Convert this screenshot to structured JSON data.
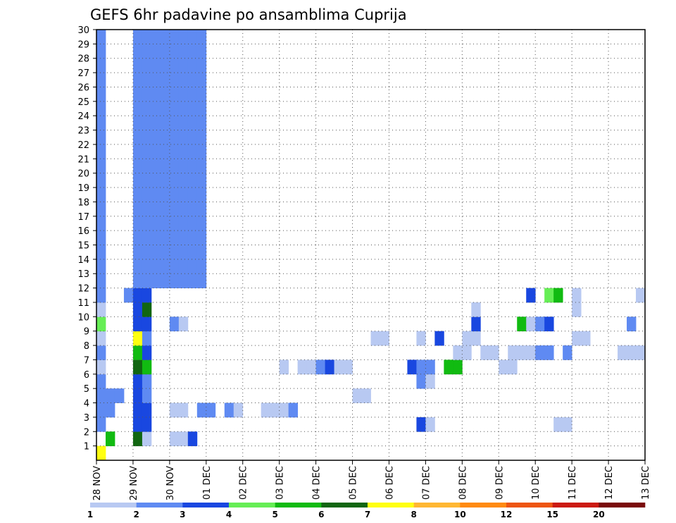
{
  "chart_data": {
    "type": "heatmap",
    "title": "GEFS 6hr padavine po ansamblima Cuprija",
    "xlabel": "",
    "ylabel": "",
    "x_ticks": [
      "28 NOV",
      "29 NOV",
      "30 NOV",
      "01 DEC",
      "02 DEC",
      "03 DEC",
      "04 DEC",
      "05 DEC",
      "06 DEC",
      "07 DEC",
      "08 DEC",
      "09 DEC",
      "10 DEC",
      "11 DEC",
      "12 DEC",
      "13 DEC"
    ],
    "y_ticks": [
      1,
      2,
      3,
      4,
      5,
      6,
      7,
      8,
      9,
      10,
      11,
      12,
      13,
      14,
      15,
      16,
      17,
      18,
      19,
      20,
      21,
      22,
      23,
      24,
      25,
      26,
      27,
      28,
      29,
      30
    ],
    "x_unit": "6h step (4 per day), 0 = 28 NOV 00z",
    "xlim": [
      0,
      60
    ],
    "ylim": [
      0,
      30
    ],
    "cell_format": "[x_step, ensemble_member, color_class 1..12]",
    "colorbar": {
      "ticks": [
        "1",
        "2",
        "3",
        "4",
        "5",
        "6",
        "7",
        "8",
        "10",
        "12",
        "15",
        "20"
      ],
      "colors": [
        "#b8c9f2",
        "#5f8af2",
        "#1947e0",
        "#66ee55",
        "#11bb11",
        "#116611",
        "#ffff11",
        "#ffb733",
        "#ff8a11",
        "#ee5511",
        "#cc1a11",
        "#7a0a0a"
      ]
    },
    "cells": [
      [
        0,
        0,
        7
      ],
      [
        1,
        1,
        5
      ],
      [
        4,
        1,
        6
      ],
      [
        5,
        1,
        1
      ],
      [
        8,
        1,
        1
      ],
      [
        9,
        1,
        1
      ],
      [
        10,
        1,
        3
      ],
      [
        0,
        2,
        2
      ],
      [
        4,
        2,
        3
      ],
      [
        5,
        2,
        3
      ],
      [
        35,
        2,
        3
      ],
      [
        36,
        2,
        1
      ],
      [
        50,
        2,
        1
      ],
      [
        51,
        2,
        1
      ],
      [
        0,
        3,
        2
      ],
      [
        1,
        3,
        2
      ],
      [
        4,
        3,
        3
      ],
      [
        5,
        3,
        3
      ],
      [
        8,
        3,
        1
      ],
      [
        9,
        3,
        1
      ],
      [
        11,
        3,
        2
      ],
      [
        12,
        3,
        2
      ],
      [
        14,
        3,
        2
      ],
      [
        15,
        3,
        1
      ],
      [
        18,
        3,
        1
      ],
      [
        19,
        3,
        1
      ],
      [
        20,
        3,
        1
      ],
      [
        21,
        3,
        2
      ],
      [
        0,
        4,
        2
      ],
      [
        1,
        4,
        2
      ],
      [
        2,
        4,
        2
      ],
      [
        4,
        4,
        3
      ],
      [
        5,
        4,
        2
      ],
      [
        28,
        4,
        1
      ],
      [
        29,
        4,
        1
      ],
      [
        0,
        5,
        2
      ],
      [
        4,
        5,
        3
      ],
      [
        5,
        5,
        2
      ],
      [
        35,
        5,
        2
      ],
      [
        36,
        5,
        1
      ],
      [
        0,
        6,
        1
      ],
      [
        4,
        6,
        6
      ],
      [
        5,
        6,
        5
      ],
      [
        20,
        6,
        1
      ],
      [
        22,
        6,
        1
      ],
      [
        23,
        6,
        1
      ],
      [
        24,
        6,
        2
      ],
      [
        25,
        6,
        3
      ],
      [
        26,
        6,
        1
      ],
      [
        27,
        6,
        1
      ],
      [
        34,
        6,
        3
      ],
      [
        35,
        6,
        2
      ],
      [
        36,
        6,
        2
      ],
      [
        38,
        6,
        5
      ],
      [
        39,
        6,
        5
      ],
      [
        44,
        6,
        1
      ],
      [
        45,
        6,
        1
      ],
      [
        0,
        7,
        2
      ],
      [
        4,
        7,
        5
      ],
      [
        5,
        7,
        3
      ],
      [
        39,
        7,
        1
      ],
      [
        40,
        7,
        1
      ],
      [
        42,
        7,
        1
      ],
      [
        43,
        7,
        1
      ],
      [
        45,
        7,
        1
      ],
      [
        46,
        7,
        1
      ],
      [
        47,
        7,
        1
      ],
      [
        48,
        7,
        2
      ],
      [
        49,
        7,
        2
      ],
      [
        51,
        7,
        2
      ],
      [
        57,
        7,
        1
      ],
      [
        58,
        7,
        1
      ],
      [
        59,
        7,
        1
      ],
      [
        0,
        8,
        1
      ],
      [
        4,
        8,
        7
      ],
      [
        5,
        8,
        2
      ],
      [
        30,
        8,
        1
      ],
      [
        31,
        8,
        1
      ],
      [
        35,
        8,
        1
      ],
      [
        37,
        8,
        3
      ],
      [
        40,
        8,
        1
      ],
      [
        41,
        8,
        1
      ],
      [
        52,
        8,
        1
      ],
      [
        53,
        8,
        1
      ],
      [
        0,
        9,
        4
      ],
      [
        4,
        9,
        3
      ],
      [
        5,
        9,
        3
      ],
      [
        8,
        9,
        2
      ],
      [
        9,
        9,
        1
      ],
      [
        41,
        9,
        3
      ],
      [
        46,
        9,
        5
      ],
      [
        47,
        9,
        1
      ],
      [
        48,
        9,
        2
      ],
      [
        49,
        9,
        3
      ],
      [
        58,
        9,
        2
      ],
      [
        0,
        10,
        1
      ],
      [
        4,
        10,
        3
      ],
      [
        5,
        10,
        6
      ],
      [
        41,
        10,
        1
      ],
      [
        52,
        10,
        1
      ],
      [
        0,
        11,
        2
      ],
      [
        3,
        11,
        2
      ],
      [
        4,
        11,
        3
      ],
      [
        5,
        11,
        3
      ],
      [
        47,
        11,
        3
      ],
      [
        49,
        11,
        4
      ],
      [
        50,
        11,
        5
      ],
      [
        52,
        11,
        1
      ],
      [
        59,
        11,
        1
      ],
      [
        0,
        12,
        2
      ],
      [
        4,
        12,
        2
      ],
      [
        5,
        12,
        2
      ],
      [
        6,
        12,
        2
      ],
      [
        7,
        12,
        2
      ],
      [
        8,
        12,
        2
      ],
      [
        9,
        12,
        2
      ],
      [
        10,
        12,
        2
      ],
      [
        11,
        12,
        2
      ],
      [
        0,
        13,
        2
      ],
      [
        4,
        13,
        2
      ],
      [
        5,
        13,
        2
      ],
      [
        6,
        13,
        2
      ],
      [
        7,
        13,
        2
      ],
      [
        8,
        13,
        2
      ],
      [
        9,
        13,
        2
      ],
      [
        10,
        13,
        2
      ],
      [
        11,
        13,
        2
      ],
      [
        0,
        14,
        2
      ],
      [
        4,
        14,
        2
      ],
      [
        5,
        14,
        2
      ],
      [
        6,
        14,
        2
      ],
      [
        7,
        14,
        2
      ],
      [
        8,
        14,
        2
      ],
      [
        9,
        14,
        2
      ],
      [
        10,
        14,
        2
      ],
      [
        11,
        14,
        2
      ],
      [
        0,
        15,
        2
      ],
      [
        4,
        15,
        2
      ],
      [
        5,
        15,
        2
      ],
      [
        6,
        15,
        2
      ],
      [
        7,
        15,
        2
      ],
      [
        8,
        15,
        2
      ],
      [
        9,
        15,
        2
      ],
      [
        10,
        15,
        2
      ],
      [
        11,
        15,
        2
      ],
      [
        0,
        16,
        2
      ],
      [
        4,
        16,
        2
      ],
      [
        5,
        16,
        2
      ],
      [
        6,
        16,
        2
      ],
      [
        7,
        16,
        2
      ],
      [
        8,
        16,
        2
      ],
      [
        9,
        16,
        2
      ],
      [
        10,
        16,
        2
      ],
      [
        11,
        16,
        2
      ],
      [
        0,
        17,
        2
      ],
      [
        4,
        17,
        2
      ],
      [
        5,
        17,
        2
      ],
      [
        6,
        17,
        2
      ],
      [
        7,
        17,
        2
      ],
      [
        8,
        17,
        2
      ],
      [
        9,
        17,
        2
      ],
      [
        10,
        17,
        2
      ],
      [
        11,
        17,
        2
      ],
      [
        0,
        18,
        2
      ],
      [
        4,
        18,
        2
      ],
      [
        5,
        18,
        2
      ],
      [
        6,
        18,
        2
      ],
      [
        7,
        18,
        2
      ],
      [
        8,
        18,
        2
      ],
      [
        9,
        18,
        2
      ],
      [
        10,
        18,
        2
      ],
      [
        11,
        18,
        2
      ],
      [
        0,
        19,
        2
      ],
      [
        4,
        19,
        2
      ],
      [
        5,
        19,
        2
      ],
      [
        6,
        19,
        2
      ],
      [
        7,
        19,
        2
      ],
      [
        8,
        19,
        2
      ],
      [
        9,
        19,
        2
      ],
      [
        10,
        19,
        2
      ],
      [
        11,
        19,
        2
      ],
      [
        0,
        20,
        2
      ],
      [
        4,
        20,
        2
      ],
      [
        5,
        20,
        2
      ],
      [
        6,
        20,
        2
      ],
      [
        7,
        20,
        2
      ],
      [
        8,
        20,
        2
      ],
      [
        9,
        20,
        2
      ],
      [
        10,
        20,
        2
      ],
      [
        11,
        20,
        2
      ],
      [
        0,
        21,
        2
      ],
      [
        4,
        21,
        2
      ],
      [
        5,
        21,
        2
      ],
      [
        6,
        21,
        2
      ],
      [
        7,
        21,
        2
      ],
      [
        8,
        21,
        2
      ],
      [
        9,
        21,
        2
      ],
      [
        10,
        21,
        2
      ],
      [
        11,
        21,
        2
      ],
      [
        0,
        22,
        2
      ],
      [
        4,
        22,
        2
      ],
      [
        5,
        22,
        2
      ],
      [
        6,
        22,
        2
      ],
      [
        7,
        22,
        2
      ],
      [
        8,
        22,
        2
      ],
      [
        9,
        22,
        2
      ],
      [
        10,
        22,
        2
      ],
      [
        11,
        22,
        2
      ],
      [
        0,
        23,
        2
      ],
      [
        4,
        23,
        2
      ],
      [
        5,
        23,
        2
      ],
      [
        6,
        23,
        2
      ],
      [
        7,
        23,
        2
      ],
      [
        8,
        23,
        2
      ],
      [
        9,
        23,
        2
      ],
      [
        10,
        23,
        2
      ],
      [
        11,
        23,
        2
      ],
      [
        0,
        24,
        2
      ],
      [
        4,
        24,
        2
      ],
      [
        5,
        24,
        2
      ],
      [
        6,
        24,
        2
      ],
      [
        7,
        24,
        2
      ],
      [
        8,
        24,
        2
      ],
      [
        9,
        24,
        2
      ],
      [
        10,
        24,
        2
      ],
      [
        11,
        24,
        2
      ],
      [
        0,
        25,
        2
      ],
      [
        4,
        25,
        2
      ],
      [
        5,
        25,
        2
      ],
      [
        6,
        25,
        2
      ],
      [
        7,
        25,
        2
      ],
      [
        8,
        25,
        2
      ],
      [
        9,
        25,
        2
      ],
      [
        10,
        25,
        2
      ],
      [
        11,
        25,
        2
      ],
      [
        0,
        26,
        2
      ],
      [
        4,
        26,
        2
      ],
      [
        5,
        26,
        2
      ],
      [
        6,
        26,
        2
      ],
      [
        7,
        26,
        2
      ],
      [
        8,
        26,
        2
      ],
      [
        9,
        26,
        2
      ],
      [
        10,
        26,
        2
      ],
      [
        11,
        26,
        2
      ],
      [
        0,
        27,
        2
      ],
      [
        4,
        27,
        2
      ],
      [
        5,
        27,
        2
      ],
      [
        6,
        27,
        2
      ],
      [
        7,
        27,
        2
      ],
      [
        8,
        27,
        2
      ],
      [
        9,
        27,
        2
      ],
      [
        10,
        27,
        2
      ],
      [
        11,
        27,
        2
      ],
      [
        0,
        28,
        2
      ],
      [
        4,
        28,
        2
      ],
      [
        5,
        28,
        2
      ],
      [
        6,
        28,
        2
      ],
      [
        7,
        28,
        2
      ],
      [
        8,
        28,
        2
      ],
      [
        9,
        28,
        2
      ],
      [
        10,
        28,
        2
      ],
      [
        11,
        28,
        2
      ],
      [
        0,
        29,
        2
      ],
      [
        4,
        29,
        2
      ],
      [
        5,
        29,
        2
      ],
      [
        6,
        29,
        2
      ],
      [
        7,
        29,
        2
      ],
      [
        8,
        29,
        2
      ],
      [
        9,
        29,
        2
      ],
      [
        10,
        29,
        2
      ],
      [
        11,
        29,
        2
      ]
    ]
  }
}
